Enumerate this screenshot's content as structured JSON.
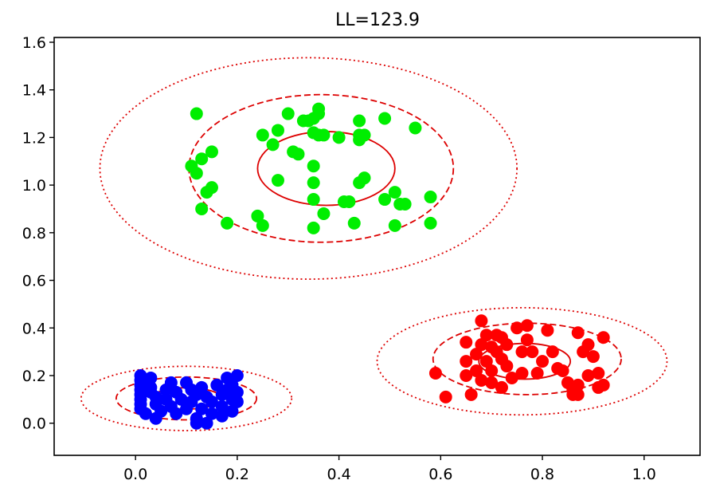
{
  "chart_data": {
    "type": "scatter",
    "title": "LL=123.9",
    "xlabel": "",
    "ylabel": "",
    "xlim": [
      -0.16,
      1.11
    ],
    "ylim": [
      -0.135,
      1.62
    ],
    "xticks": [
      0.0,
      0.2,
      0.4,
      0.6,
      0.8,
      1.0
    ],
    "xtick_labels": [
      "0.0",
      "0.2",
      "0.4",
      "0.6",
      "0.8",
      "1.0"
    ],
    "yticks": [
      0.0,
      0.2,
      0.4,
      0.6,
      0.8,
      1.0,
      1.2,
      1.4,
      1.6
    ],
    "ytick_labels": [
      "0.0",
      "0.2",
      "0.4",
      "0.6",
      "0.8",
      "1.0",
      "1.2",
      "1.4",
      "1.6"
    ],
    "grid": false,
    "series": [
      {
        "color": "#0000ff",
        "points": [
          [
            0.01,
            0.2
          ],
          [
            0.01,
            0.18
          ],
          [
            0.01,
            0.16
          ],
          [
            0.01,
            0.14
          ],
          [
            0.01,
            0.12
          ],
          [
            0.01,
            0.1
          ],
          [
            0.01,
            0.08
          ],
          [
            0.01,
            0.06
          ],
          [
            0.02,
            0.04
          ],
          [
            0.03,
            0.19
          ],
          [
            0.03,
            0.15
          ],
          [
            0.03,
            0.13
          ],
          [
            0.04,
            0.11
          ],
          [
            0.04,
            0.08
          ],
          [
            0.05,
            0.05
          ],
          [
            0.04,
            0.02
          ],
          [
            0.06,
            0.1
          ],
          [
            0.06,
            0.14
          ],
          [
            0.07,
            0.17
          ],
          [
            0.07,
            0.07
          ],
          [
            0.08,
            0.13
          ],
          [
            0.08,
            0.04
          ],
          [
            0.09,
            0.1
          ],
          [
            0.1,
            0.17
          ],
          [
            0.1,
            0.06
          ],
          [
            0.11,
            0.14
          ],
          [
            0.11,
            0.09
          ],
          [
            0.12,
            0.02
          ],
          [
            0.12,
            0.12
          ],
          [
            0.13,
            0.15
          ],
          [
            0.13,
            0.06
          ],
          [
            0.14,
            0.0
          ],
          [
            0.14,
            0.11
          ],
          [
            0.15,
            0.09
          ],
          [
            0.16,
            0.16
          ],
          [
            0.17,
            0.03
          ],
          [
            0.17,
            0.12
          ],
          [
            0.17,
            0.07
          ],
          [
            0.18,
            0.19
          ],
          [
            0.18,
            0.14
          ],
          [
            0.19,
            0.1
          ],
          [
            0.19,
            0.05
          ],
          [
            0.19,
            0.16
          ],
          [
            0.2,
            0.13
          ],
          [
            0.2,
            0.09
          ],
          [
            0.2,
            0.2
          ],
          [
            0.12,
            0.0
          ],
          [
            0.15,
            0.04
          ]
        ]
      },
      {
        "color": "#00ee00",
        "points": [
          [
            0.12,
            1.3
          ],
          [
            0.15,
            1.14
          ],
          [
            0.13,
            1.11
          ],
          [
            0.11,
            1.08
          ],
          [
            0.12,
            1.05
          ],
          [
            0.14,
            0.97
          ],
          [
            0.15,
            0.99
          ],
          [
            0.13,
            0.9
          ],
          [
            0.18,
            0.84
          ],
          [
            0.24,
            0.87
          ],
          [
            0.25,
            0.83
          ],
          [
            0.25,
            1.21
          ],
          [
            0.27,
            1.17
          ],
          [
            0.28,
            1.23
          ],
          [
            0.28,
            1.02
          ],
          [
            0.3,
            1.3
          ],
          [
            0.31,
            1.14
          ],
          [
            0.32,
            1.13
          ],
          [
            0.33,
            1.27
          ],
          [
            0.34,
            1.27
          ],
          [
            0.35,
            1.28
          ],
          [
            0.35,
            1.22
          ],
          [
            0.36,
            1.3
          ],
          [
            0.36,
            1.21
          ],
          [
            0.37,
            1.21
          ],
          [
            0.35,
            1.08
          ],
          [
            0.35,
            1.01
          ],
          [
            0.35,
            0.94
          ],
          [
            0.35,
            0.82
          ],
          [
            0.37,
            0.88
          ],
          [
            0.4,
            1.2
          ],
          [
            0.41,
            0.93
          ],
          [
            0.42,
            0.93
          ],
          [
            0.43,
            0.84
          ],
          [
            0.44,
            1.27
          ],
          [
            0.44,
            1.21
          ],
          [
            0.45,
            1.21
          ],
          [
            0.45,
            1.03
          ],
          [
            0.44,
            1.01
          ],
          [
            0.44,
            1.19
          ],
          [
            0.49,
            1.28
          ],
          [
            0.49,
            0.94
          ],
          [
            0.51,
            0.97
          ],
          [
            0.51,
            0.83
          ],
          [
            0.52,
            0.92
          ],
          [
            0.53,
            0.92
          ],
          [
            0.55,
            1.24
          ],
          [
            0.58,
            0.95
          ],
          [
            0.58,
            0.84
          ],
          [
            0.36,
            1.32
          ]
        ]
      },
      {
        "color": "#ff0000",
        "points": [
          [
            0.59,
            0.21
          ],
          [
            0.61,
            0.11
          ],
          [
            0.65,
            0.34
          ],
          [
            0.65,
            0.26
          ],
          [
            0.65,
            0.2
          ],
          [
            0.66,
            0.12
          ],
          [
            0.67,
            0.29
          ],
          [
            0.67,
            0.22
          ],
          [
            0.68,
            0.43
          ],
          [
            0.68,
            0.33
          ],
          [
            0.69,
            0.26
          ],
          [
            0.69,
            0.37
          ],
          [
            0.7,
            0.32
          ],
          [
            0.7,
            0.22
          ],
          [
            0.7,
            0.17
          ],
          [
            0.71,
            0.37
          ],
          [
            0.71,
            0.3
          ],
          [
            0.72,
            0.15
          ],
          [
            0.72,
            0.27
          ],
          [
            0.72,
            0.36
          ],
          [
            0.73,
            0.33
          ],
          [
            0.73,
            0.24
          ],
          [
            0.74,
            0.19
          ],
          [
            0.75,
            0.4
          ],
          [
            0.76,
            0.3
          ],
          [
            0.76,
            0.21
          ],
          [
            0.77,
            0.41
          ],
          [
            0.77,
            0.35
          ],
          [
            0.78,
            0.3
          ],
          [
            0.79,
            0.21
          ],
          [
            0.8,
            0.26
          ],
          [
            0.81,
            0.39
          ],
          [
            0.82,
            0.3
          ],
          [
            0.83,
            0.23
          ],
          [
            0.84,
            0.22
          ],
          [
            0.85,
            0.17
          ],
          [
            0.86,
            0.12
          ],
          [
            0.86,
            0.14
          ],
          [
            0.87,
            0.38
          ],
          [
            0.87,
            0.12
          ],
          [
            0.88,
            0.3
          ],
          [
            0.89,
            0.33
          ],
          [
            0.89,
            0.2
          ],
          [
            0.9,
            0.28
          ],
          [
            0.91,
            0.21
          ],
          [
            0.91,
            0.15
          ],
          [
            0.92,
            0.16
          ],
          [
            0.92,
            0.36
          ],
          [
            0.87,
            0.16
          ],
          [
            0.68,
            0.18
          ]
        ]
      }
    ],
    "ellipses": [
      {
        "cx": 0.1,
        "cy": 0.104,
        "rx": 0.069,
        "ry": 0.045,
        "style": "solid"
      },
      {
        "cx": 0.1,
        "cy": 0.104,
        "rx": 0.138,
        "ry": 0.09,
        "style": "dashed"
      },
      {
        "cx": 0.1,
        "cy": 0.104,
        "rx": 0.207,
        "ry": 0.135,
        "style": "dotted"
      },
      {
        "cx": 0.375,
        "cy": 1.07,
        "rx": 0.135,
        "ry": 0.155,
        "style": "solid"
      },
      {
        "cx": 0.365,
        "cy": 1.07,
        "rx": 0.26,
        "ry": 0.31,
        "style": "dashed"
      },
      {
        "cx": 0.34,
        "cy": 1.07,
        "rx": 0.41,
        "ry": 0.465,
        "style": "dotted"
      },
      {
        "cx": 0.765,
        "cy": 0.26,
        "rx": 0.09,
        "ry": 0.075,
        "style": "solid"
      },
      {
        "cx": 0.77,
        "cy": 0.27,
        "rx": 0.185,
        "ry": 0.15,
        "style": "dashed"
      },
      {
        "cx": 0.76,
        "cy": 0.26,
        "rx": 0.285,
        "ry": 0.225,
        "style": "dotted"
      }
    ],
    "ellipse_color": "#dd0000"
  }
}
